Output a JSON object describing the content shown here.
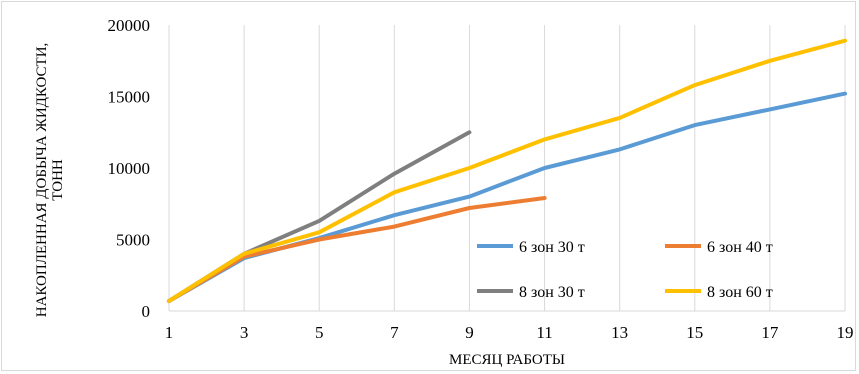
{
  "chart_data": {
    "type": "line",
    "title": "",
    "xlabel": "МЕСЯЦ РАБОТЫ",
    "ylabel_line1": "НАКОПЛЕННАЯ ДОБЫЧА ЖИДКОСТИ,",
    "ylabel_line2": "ТОНН",
    "xlim": [
      1,
      19
    ],
    "ylim": [
      0,
      20000
    ],
    "x_ticks": [
      1,
      3,
      5,
      7,
      9,
      11,
      13,
      15,
      17,
      19
    ],
    "y_ticks": [
      0,
      5000,
      10000,
      15000,
      20000
    ],
    "grid": "vertical",
    "legend_position": "lower-right",
    "series": [
      {
        "name": "6 зон 30 т",
        "color": "#5b9bd5",
        "x": [
          1,
          3,
          5,
          7,
          9,
          11,
          13,
          15,
          17,
          19
        ],
        "values": [
          700,
          3700,
          5100,
          6700,
          8000,
          10000,
          11300,
          13000,
          14100,
          15200
        ]
      },
      {
        "name": "6 зон 40 т",
        "color": "#ed7d31",
        "x": [
          1,
          3,
          5,
          7,
          9,
          11
        ],
        "values": [
          700,
          3800,
          5000,
          5900,
          7200,
          7900
        ]
      },
      {
        "name": "8 зон 30 т",
        "color": "#7f7f7f",
        "x": [
          1,
          3,
          5,
          7,
          9
        ],
        "values": [
          700,
          4000,
          6300,
          9600,
          12500
        ]
      },
      {
        "name": "8 зон 60 т",
        "color": "#ffc000",
        "x": [
          1,
          3,
          5,
          7,
          9,
          11,
          13,
          15,
          17,
          19
        ],
        "values": [
          700,
          4000,
          5500,
          8300,
          10000,
          12000,
          13500,
          15800,
          17500,
          18900
        ]
      }
    ]
  }
}
